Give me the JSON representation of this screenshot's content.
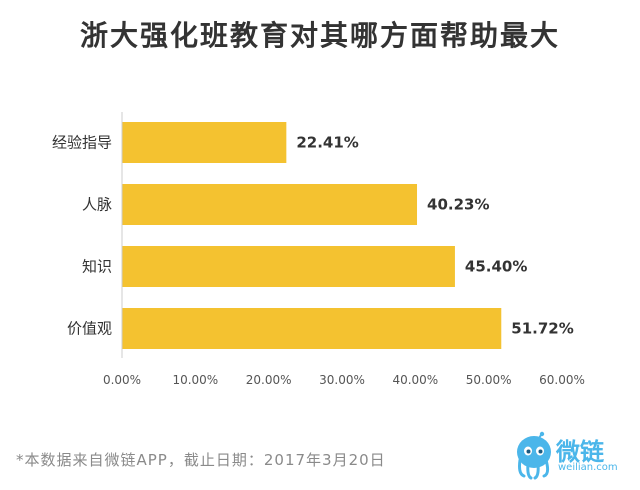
{
  "chart_data": {
    "type": "bar",
    "orientation": "horizontal",
    "title": "浙大强化班教育对其哪方面帮助最大",
    "categories": [
      "经验指导",
      "人脉",
      "知识",
      "价值观"
    ],
    "values": [
      22.41,
      40.23,
      45.4,
      51.72
    ],
    "value_labels": [
      "22.41%",
      "40.23%",
      "45.40%",
      "51.72%"
    ],
    "xlim": [
      0,
      60
    ],
    "xticks": [
      0,
      10,
      20,
      30,
      40,
      50,
      60
    ],
    "xtick_labels": [
      "0.00%",
      "10.00%",
      "20.00%",
      "30.00%",
      "40.00%",
      "50.00%",
      "60.00%"
    ],
    "xlabel": "",
    "ylabel": "",
    "grid": false,
    "bar_color": "#f4c230"
  },
  "footnote": "*本数据来自微链APP，截止日期：2017年3月20日",
  "brand": {
    "name": "微链",
    "url": "weilian.com",
    "color": "#4bb6ea"
  }
}
